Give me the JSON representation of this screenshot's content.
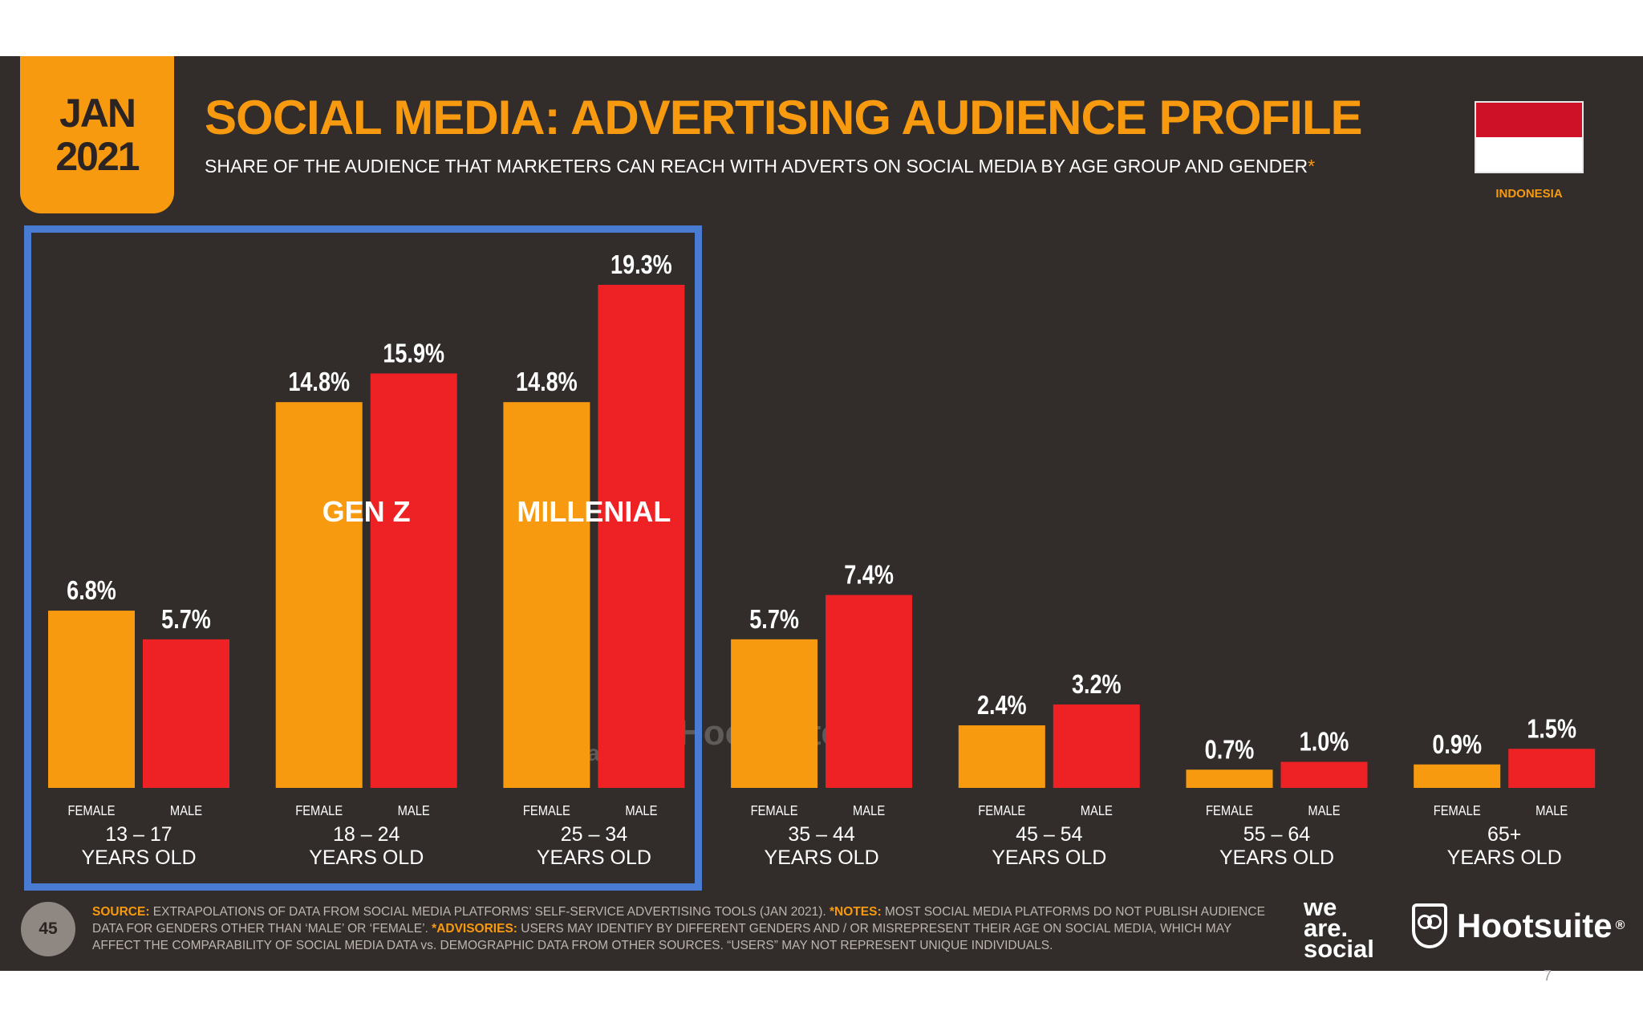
{
  "header": {
    "date_month": "JAN",
    "date_year": "2021",
    "title": "SOCIAL MEDIA: ADVERTISING AUDIENCE PROFILE",
    "subtitle": "SHARE OF THE AUDIENCE THAT MARKETERS CAN REACH WITH ADVERTS ON SOCIAL MEDIA BY AGE GROUP AND GENDER",
    "subtitle_star": "*",
    "country": "INDONESIA"
  },
  "colors": {
    "background": "#322d2b",
    "female": "#f89a0f",
    "male": "#ee2124",
    "highlight": "#4a7bd2",
    "accent": "#f89a0f"
  },
  "chart_data": {
    "type": "bar",
    "title": "SOCIAL MEDIA: ADVERTISING AUDIENCE PROFILE",
    "categories": [
      "13 – 17",
      "18 – 24",
      "25 – 34",
      "35 – 44",
      "45 – 54",
      "55 – 64",
      "65+"
    ],
    "category_sublabel": "YEARS OLD",
    "series": [
      {
        "name": "FEMALE",
        "values": [
          6.8,
          14.8,
          14.8,
          5.7,
          2.4,
          0.7,
          0.9
        ],
        "labels": [
          "6.8%",
          "14.8%",
          "14.8%",
          "5.7%",
          "2.4%",
          "0.7%",
          "0.9%"
        ]
      },
      {
        "name": "MALE",
        "values": [
          5.7,
          15.9,
          19.3,
          7.4,
          3.2,
          1.0,
          1.5
        ],
        "labels": [
          "5.7%",
          "15.9%",
          "19.3%",
          "7.4%",
          "3.2%",
          "1.0%",
          "1.5%"
        ]
      }
    ],
    "ylim": [
      0,
      19.3
    ],
    "grid": false,
    "annotations": [
      {
        "text": "GEN Z",
        "category": "18 – 24"
      },
      {
        "text": "MILLENIAL",
        "category": "25 – 34"
      }
    ],
    "highlighted_categories": [
      "13 – 17",
      "18 – 24",
      "25 – 34"
    ]
  },
  "footer": {
    "page_number": "45",
    "source_label": "SOURCE:",
    "source_text": " EXTRAPOLATIONS OF DATA FROM SOCIAL MEDIA PLATFORMS’ SELF-SERVICE ADVERTISING TOOLS (JAN 2021). ",
    "notes_label": "*NOTES:",
    "notes_text": " MOST SOCIAL MEDIA PLATFORMS DO NOT PUBLISH AUDIENCE DATA FOR GENDERS OTHER THAN ‘MALE’ OR ‘FEMALE’. ",
    "advisories_label": "*ADVISORIES:",
    "advisories_text": " USERS MAY IDENTIFY BY DIFFERENT GENDERS AND / OR MISREPRESENT THEIR AGE ON SOCIAL MEDIA, WHICH MAY AFFECT THE COMPARABILITY OF SOCIAL MEDIA DATA vs. DEMOGRAPHIC DATA FROM OTHER SOURCES. “USERS” MAY NOT REPRESENT UNIQUE INDIVIDUALS.",
    "we_are_social_lines": [
      "we",
      "are.",
      "social"
    ],
    "hootsuite_logo": "Hootsuite",
    "hootsuite_reg": "®"
  },
  "watermark": {
    "we_are_social_lines": [
      "we",
      "are",
      "social"
    ],
    "hootsuite": "Hootsuite"
  },
  "corner_page_number": "7"
}
